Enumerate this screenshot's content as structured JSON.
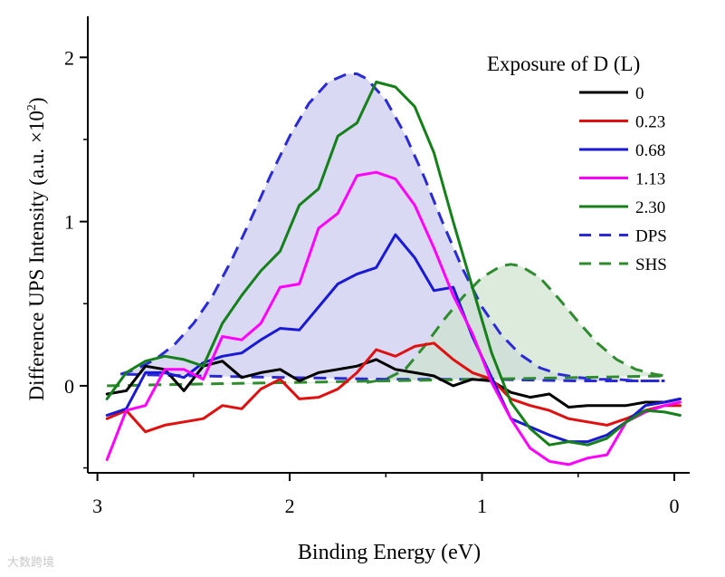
{
  "chart_data": {
    "type": "line",
    "title": "",
    "xlabel": "Binding Energy (eV)",
    "ylabel": "Difference UPS Intensity (a.u. ×10",
    "ylabel_sup": "2",
    "ylabel_close": ")",
    "xlim": [
      3.05,
      -0.08
    ],
    "ylim": [
      -0.53,
      2.25
    ],
    "x_ticks": [
      3,
      2,
      1,
      0
    ],
    "x_tick_labels": [
      "3",
      "2",
      "1",
      "0"
    ],
    "y_ticks": [
      0,
      1,
      2
    ],
    "y_tick_labels": [
      "0",
      "1",
      "2"
    ],
    "legend": {
      "title": "Exposure of D (L)",
      "placement": "top-right",
      "entries": [
        "0",
        "0.23",
        "0.68",
        "1.13",
        "2.30",
        "DPS",
        "SHS"
      ]
    },
    "series": [
      {
        "name": "0",
        "color": "#000000",
        "style": "solid",
        "x": [
          2.95,
          2.85,
          2.75,
          2.65,
          2.55,
          2.45,
          2.35,
          2.25,
          2.15,
          2.05,
          1.95,
          1.85,
          1.75,
          1.65,
          1.55,
          1.45,
          1.35,
          1.25,
          1.15,
          1.05,
          0.95,
          0.85,
          0.75,
          0.65,
          0.55,
          0.45,
          0.35,
          0.25,
          0.15,
          0.05,
          -0.03
        ],
        "y": [
          -0.05,
          -0.03,
          0.12,
          0.1,
          -0.03,
          0.12,
          0.15,
          0.05,
          0.08,
          0.1,
          0.03,
          0.08,
          0.1,
          0.12,
          0.16,
          0.1,
          0.08,
          0.06,
          0.0,
          0.04,
          0.03,
          -0.04,
          -0.07,
          -0.05,
          -0.13,
          -0.12,
          -0.12,
          -0.12,
          -0.1,
          -0.1,
          -0.08
        ]
      },
      {
        "name": "0.23",
        "color": "#e01010",
        "style": "solid",
        "x": [
          2.95,
          2.85,
          2.75,
          2.65,
          2.55,
          2.45,
          2.35,
          2.25,
          2.15,
          2.05,
          1.95,
          1.85,
          1.75,
          1.65,
          1.55,
          1.45,
          1.35,
          1.25,
          1.15,
          1.05,
          0.95,
          0.85,
          0.75,
          0.65,
          0.55,
          0.45,
          0.35,
          0.25,
          0.15,
          0.05,
          -0.03
        ],
        "y": [
          -0.2,
          -0.15,
          -0.28,
          -0.24,
          -0.22,
          -0.2,
          -0.12,
          -0.14,
          -0.02,
          0.04,
          -0.08,
          -0.07,
          -0.02,
          0.08,
          0.22,
          0.18,
          0.24,
          0.26,
          0.16,
          0.08,
          0.04,
          -0.08,
          -0.12,
          -0.15,
          -0.2,
          -0.22,
          -0.24,
          -0.2,
          -0.15,
          -0.12,
          -0.12
        ]
      },
      {
        "name": "0.68",
        "color": "#1a1ad4",
        "style": "solid",
        "x": [
          2.95,
          2.85,
          2.75,
          2.65,
          2.55,
          2.45,
          2.35,
          2.25,
          2.15,
          2.05,
          1.95,
          1.85,
          1.75,
          1.65,
          1.55,
          1.45,
          1.35,
          1.25,
          1.15,
          1.05,
          0.95,
          0.85,
          0.75,
          0.65,
          0.55,
          0.45,
          0.35,
          0.25,
          0.15,
          0.05,
          -0.03
        ],
        "y": [
          -0.18,
          -0.14,
          0.08,
          0.08,
          0.05,
          0.14,
          0.18,
          0.2,
          0.28,
          0.35,
          0.34,
          0.48,
          0.62,
          0.68,
          0.72,
          0.92,
          0.78,
          0.58,
          0.6,
          0.3,
          0.05,
          -0.2,
          -0.25,
          -0.3,
          -0.34,
          -0.34,
          -0.3,
          -0.22,
          -0.12,
          -0.1,
          -0.08
        ]
      },
      {
        "name": "1.13",
        "color": "#ff00ff",
        "style": "solid",
        "x": [
          2.95,
          2.85,
          2.75,
          2.65,
          2.55,
          2.45,
          2.35,
          2.25,
          2.15,
          2.05,
          1.95,
          1.85,
          1.75,
          1.65,
          1.55,
          1.45,
          1.35,
          1.25,
          1.15,
          1.05,
          0.95,
          0.85,
          0.75,
          0.65,
          0.55,
          0.45,
          0.35,
          0.25,
          0.15,
          0.05,
          -0.03
        ],
        "y": [
          -0.45,
          -0.15,
          -0.12,
          0.1,
          0.1,
          0.04,
          0.3,
          0.28,
          0.38,
          0.6,
          0.62,
          0.96,
          1.05,
          1.28,
          1.3,
          1.26,
          1.1,
          0.84,
          0.55,
          0.32,
          0.02,
          -0.2,
          -0.38,
          -0.46,
          -0.48,
          -0.44,
          -0.42,
          -0.22,
          -0.16,
          -0.12,
          -0.1
        ]
      },
      {
        "name": "2.30",
        "color": "#15801a",
        "style": "solid",
        "x": [
          2.95,
          2.85,
          2.75,
          2.65,
          2.55,
          2.45,
          2.35,
          2.25,
          2.15,
          2.05,
          1.95,
          1.85,
          1.75,
          1.65,
          1.55,
          1.45,
          1.35,
          1.25,
          1.15,
          1.05,
          0.95,
          0.85,
          0.75,
          0.65,
          0.55,
          0.45,
          0.35,
          0.25,
          0.15,
          0.05,
          -0.03
        ],
        "y": [
          -0.08,
          0.08,
          0.15,
          0.18,
          0.16,
          0.12,
          0.38,
          0.55,
          0.7,
          0.82,
          1.1,
          1.2,
          1.52,
          1.6,
          1.85,
          1.82,
          1.7,
          1.42,
          1.0,
          0.6,
          0.2,
          -0.1,
          -0.26,
          -0.36,
          -0.34,
          -0.36,
          -0.32,
          -0.22,
          -0.15,
          -0.16,
          -0.18
        ]
      },
      {
        "name": "DPS",
        "color": "#2b2bd6",
        "style": "dashed",
        "fill": "#c9c9ef",
        "x": [
          2.88,
          2.8,
          2.7,
          2.6,
          2.5,
          2.4,
          2.3,
          2.2,
          2.1,
          2.0,
          1.9,
          1.8,
          1.7,
          1.65,
          1.6,
          1.5,
          1.4,
          1.3,
          1.2,
          1.1,
          1.0,
          0.9,
          0.8,
          0.7,
          0.6,
          0.5,
          0.4,
          0.3,
          0.2,
          0.1,
          0.05
        ],
        "y": [
          0.07,
          0.1,
          0.16,
          0.25,
          0.38,
          0.55,
          0.77,
          1.02,
          1.28,
          1.52,
          1.72,
          1.85,
          1.9,
          1.9,
          1.87,
          1.74,
          1.53,
          1.27,
          0.98,
          0.71,
          0.48,
          0.31,
          0.19,
          0.11,
          0.07,
          0.05,
          0.04,
          0.04,
          0.03,
          0.03,
          0.03
        ]
      },
      {
        "name": "SHS",
        "color": "#2e8b2e",
        "style": "dashed",
        "fill": "#cde3cd",
        "x": [
          1.6,
          1.5,
          1.4,
          1.3,
          1.2,
          1.1,
          1.0,
          0.9,
          0.85,
          0.8,
          0.7,
          0.6,
          0.5,
          0.4,
          0.3,
          0.2,
          0.1,
          0.05
        ],
        "y": [
          0.02,
          0.04,
          0.1,
          0.24,
          0.4,
          0.54,
          0.66,
          0.73,
          0.74,
          0.73,
          0.66,
          0.53,
          0.39,
          0.26,
          0.16,
          0.1,
          0.07,
          0.06
        ]
      },
      {
        "name": "DPS baseline",
        "color": "#2b2bd6",
        "style": "dashed",
        "x": [
          2.85,
          2.5,
          2.0,
          1.5,
          1.0,
          0.5,
          0.05
        ],
        "y": [
          0.07,
          0.06,
          0.05,
          0.04,
          0.04,
          0.03,
          0.03
        ]
      },
      {
        "name": "SHS baseline",
        "color": "#2e8b2e",
        "style": "dashed",
        "x": [
          2.95,
          2.5,
          2.0,
          1.5,
          1.0,
          0.5,
          0.05
        ],
        "y": [
          0.0,
          0.01,
          0.02,
          0.03,
          0.04,
          0.05,
          0.06
        ]
      }
    ]
  },
  "watermark": "大数跨境"
}
